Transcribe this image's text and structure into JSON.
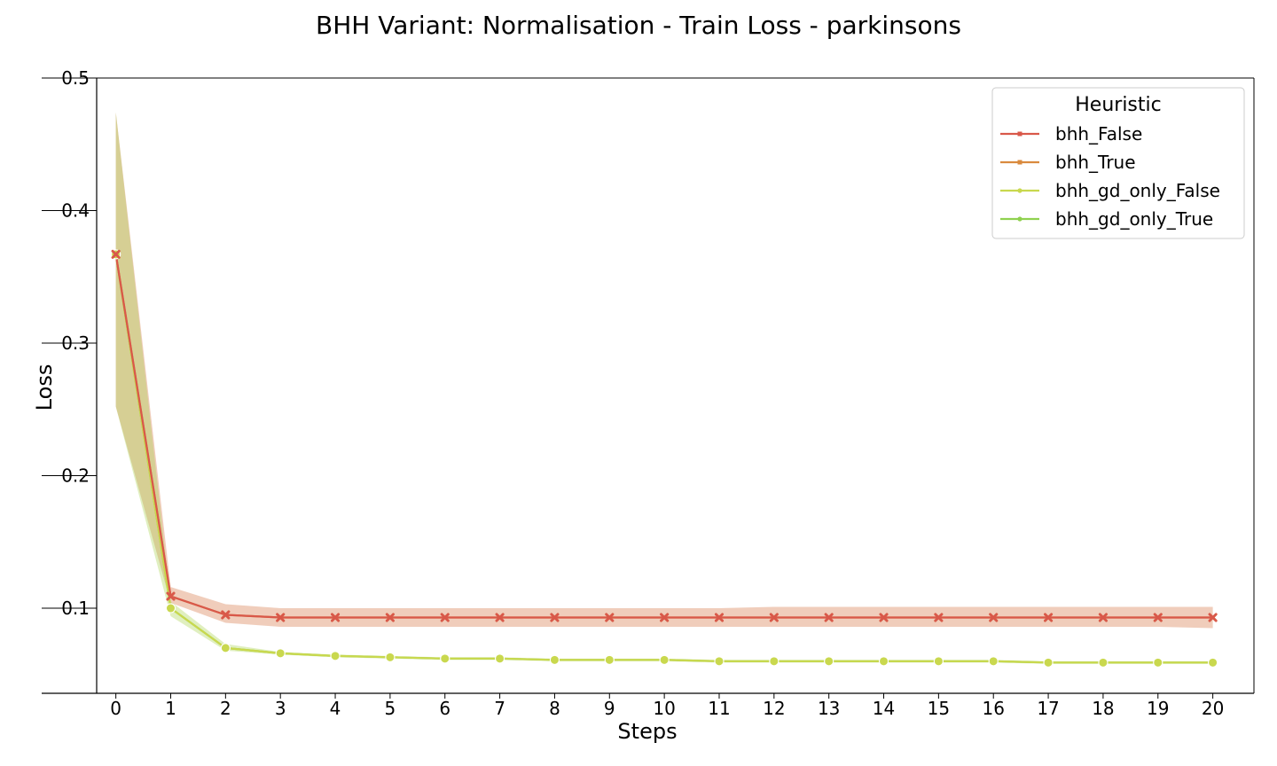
{
  "chart_data": {
    "type": "line",
    "title": "BHH Variant: Normalisation - Train Loss - parkinsons",
    "xlabel": "Steps",
    "ylabel": "Loss",
    "xlim": [
      -0.35,
      20.75
    ],
    "ylim": [
      0.0358,
      0.5
    ],
    "x_ticks": [
      0,
      1,
      2,
      3,
      4,
      5,
      6,
      7,
      8,
      9,
      10,
      11,
      12,
      13,
      14,
      15,
      16,
      17,
      18,
      19,
      20
    ],
    "y_ticks": [
      0.1,
      0.2,
      0.3,
      0.4,
      0.5
    ],
    "y_tick_labels": [
      "0.1",
      "0.2",
      "0.3",
      "0.4",
      "0.5"
    ],
    "grid": false,
    "legend": {
      "title": "Heuristic",
      "placement": "top-right"
    },
    "x": [
      0,
      1,
      2,
      3,
      4,
      5,
      6,
      7,
      8,
      9,
      10,
      11,
      12,
      13,
      14,
      15,
      16,
      17,
      18,
      19,
      20
    ],
    "series": [
      {
        "name": "bhh_False",
        "color": "#d9584a",
        "marker": "x",
        "values": [
          0.367,
          0.109,
          0.095,
          0.093,
          0.093,
          0.093,
          0.093,
          0.093,
          0.093,
          0.093,
          0.093,
          0.093,
          0.093,
          0.093,
          0.093,
          0.093,
          0.093,
          0.093,
          0.093,
          0.093,
          0.093
        ],
        "band_lower": [
          0.252,
          0.104,
          0.089,
          0.086,
          0.086,
          0.086,
          0.086,
          0.086,
          0.086,
          0.086,
          0.086,
          0.086,
          0.086,
          0.086,
          0.086,
          0.086,
          0.086,
          0.086,
          0.086,
          0.086,
          0.085
        ],
        "band_upper": [
          0.474,
          0.116,
          0.103,
          0.1,
          0.1,
          0.1,
          0.1,
          0.1,
          0.1,
          0.1,
          0.1,
          0.1,
          0.101,
          0.101,
          0.101,
          0.101,
          0.101,
          0.101,
          0.101,
          0.101,
          0.101
        ]
      },
      {
        "name": "bhh_True",
        "color": "#d98a3e",
        "marker": "x",
        "values": [
          0.367,
          0.109,
          0.095,
          0.093,
          0.093,
          0.093,
          0.093,
          0.093,
          0.093,
          0.093,
          0.093,
          0.093,
          0.093,
          0.093,
          0.093,
          0.093,
          0.093,
          0.093,
          0.093,
          0.093,
          0.093
        ],
        "band_lower": [
          0.252,
          0.104,
          0.089,
          0.086,
          0.086,
          0.086,
          0.086,
          0.086,
          0.086,
          0.086,
          0.086,
          0.086,
          0.086,
          0.086,
          0.086,
          0.086,
          0.086,
          0.086,
          0.086,
          0.086,
          0.085
        ],
        "band_upper": [
          0.474,
          0.116,
          0.103,
          0.1,
          0.1,
          0.1,
          0.1,
          0.1,
          0.1,
          0.1,
          0.1,
          0.1,
          0.101,
          0.101,
          0.101,
          0.101,
          0.101,
          0.101,
          0.101,
          0.101,
          0.101
        ]
      },
      {
        "name": "bhh_gd_only_False",
        "color": "#c9d84e",
        "marker": "o",
        "values": [
          0.367,
          0.1,
          0.07,
          0.066,
          0.064,
          0.063,
          0.062,
          0.062,
          0.061,
          0.061,
          0.061,
          0.06,
          0.06,
          0.06,
          0.06,
          0.06,
          0.06,
          0.059,
          0.059,
          0.059,
          0.059
        ],
        "band_lower": [
          0.252,
          0.094,
          0.068,
          0.065,
          0.063,
          0.062,
          0.061,
          0.061,
          0.06,
          0.06,
          0.06,
          0.059,
          0.059,
          0.059,
          0.059,
          0.059,
          0.059,
          0.058,
          0.058,
          0.058,
          0.058
        ],
        "band_upper": [
          0.474,
          0.105,
          0.073,
          0.067,
          0.065,
          0.064,
          0.063,
          0.063,
          0.062,
          0.062,
          0.062,
          0.061,
          0.061,
          0.061,
          0.061,
          0.061,
          0.061,
          0.06,
          0.06,
          0.06,
          0.06
        ]
      },
      {
        "name": "bhh_gd_only_True",
        "color": "#8fd14f",
        "marker": "o",
        "values": [
          0.367,
          0.1,
          0.07,
          0.066,
          0.064,
          0.063,
          0.062,
          0.062,
          0.061,
          0.061,
          0.061,
          0.06,
          0.06,
          0.06,
          0.06,
          0.06,
          0.06,
          0.059,
          0.059,
          0.059,
          0.059
        ],
        "band_lower": [
          0.252,
          0.094,
          0.068,
          0.065,
          0.063,
          0.062,
          0.061,
          0.061,
          0.06,
          0.06,
          0.06,
          0.059,
          0.059,
          0.059,
          0.059,
          0.059,
          0.059,
          0.058,
          0.058,
          0.058,
          0.058
        ],
        "band_upper": [
          0.474,
          0.105,
          0.073,
          0.067,
          0.065,
          0.064,
          0.063,
          0.063,
          0.062,
          0.062,
          0.062,
          0.061,
          0.061,
          0.061,
          0.061,
          0.061,
          0.061,
          0.06,
          0.06,
          0.06,
          0.06
        ]
      }
    ]
  }
}
